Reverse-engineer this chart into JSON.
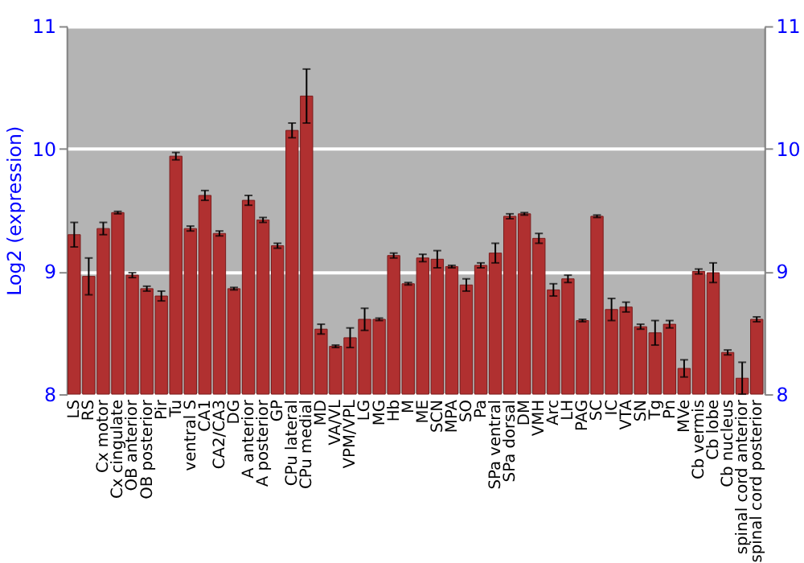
{
  "chart_data": {
    "type": "bar",
    "ylabel": "Log2 (expression)",
    "categories": [
      "LS",
      "RS",
      "Cx motor",
      "Cx cingulate",
      "OB anterior",
      "OB posterior",
      "Pir",
      "Tu",
      "ventral S",
      "CA1",
      "CA2/CA3",
      "DG",
      "A anterior",
      "A posterior",
      "GP",
      "CPu lateral",
      "CPu medial",
      "MD",
      "VA/VL",
      "VPM/VPL",
      "LG",
      "MG",
      "Hb",
      "M",
      "ME",
      "SCN",
      "MPA",
      "SO",
      "Pa",
      "SPa ventral",
      "SPa dorsal",
      "DM",
      "VMH",
      "Arc",
      "LH",
      "PAG",
      "SC",
      "IC",
      "VTA",
      "SN",
      "Tg",
      "Pn",
      "MVe",
      "Cb vermis",
      "Cb lobe",
      "Cb nucleus",
      "spinal cord anterior",
      "spinal cord posterior"
    ],
    "values": [
      9.3,
      8.96,
      9.35,
      9.48,
      8.97,
      8.86,
      8.8,
      9.94,
      9.35,
      9.62,
      9.31,
      8.86,
      9.58,
      9.42,
      9.21,
      10.15,
      10.43,
      8.53,
      8.39,
      8.46,
      8.61,
      8.61,
      9.13,
      8.9,
      9.11,
      9.1,
      9.04,
      8.89,
      9.05,
      9.15,
      9.45,
      9.47,
      9.27,
      8.85,
      8.94,
      8.6,
      9.45,
      8.69,
      8.71,
      8.55,
      8.5,
      8.57,
      8.21,
      9.0,
      8.99,
      8.34,
      8.13,
      8.61
    ],
    "errors": [
      0.1,
      0.15,
      0.05,
      0.01,
      0.02,
      0.02,
      0.04,
      0.03,
      0.02,
      0.04,
      0.02,
      0.01,
      0.04,
      0.02,
      0.02,
      0.06,
      0.22,
      0.04,
      0.01,
      0.08,
      0.09,
      0.01,
      0.02,
      0.01,
      0.03,
      0.07,
      0.01,
      0.05,
      0.02,
      0.08,
      0.02,
      0.01,
      0.04,
      0.05,
      0.03,
      0.01,
      0.01,
      0.09,
      0.04,
      0.02,
      0.1,
      0.03,
      0.07,
      0.02,
      0.08,
      0.02,
      0.13,
      0.02
    ],
    "color": "#b03030",
    "ylim": [
      8,
      11
    ],
    "yticks": [
      8,
      9,
      10,
      11
    ],
    "y2lim": [
      8,
      11
    ],
    "y2ticks": [
      8,
      9,
      10,
      11
    ],
    "grid": "y"
  }
}
